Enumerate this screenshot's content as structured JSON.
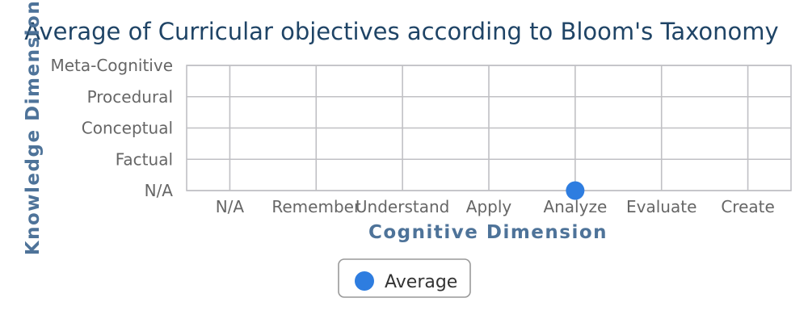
{
  "chart_data": {
    "type": "scatter",
    "title": "Average of Curricular objectives according to Bloom's Taxonomy",
    "xlabel": "Cognitive Dimension",
    "ylabel": "Knowledge Dimension",
    "x_categories": [
      "N/A",
      "Remember",
      "Understand",
      "Apply",
      "Analyze",
      "Evaluate",
      "Create"
    ],
    "y_categories": [
      "N/A",
      "Factual",
      "Conceptual",
      "Procedural",
      "Meta-Cognitive"
    ],
    "series": [
      {
        "name": "Average",
        "color": "#2e7de0",
        "points": [
          {
            "x": "Analyze",
            "y": "N/A"
          }
        ]
      }
    ],
    "grid": true,
    "legend_position": "bottom-center"
  }
}
